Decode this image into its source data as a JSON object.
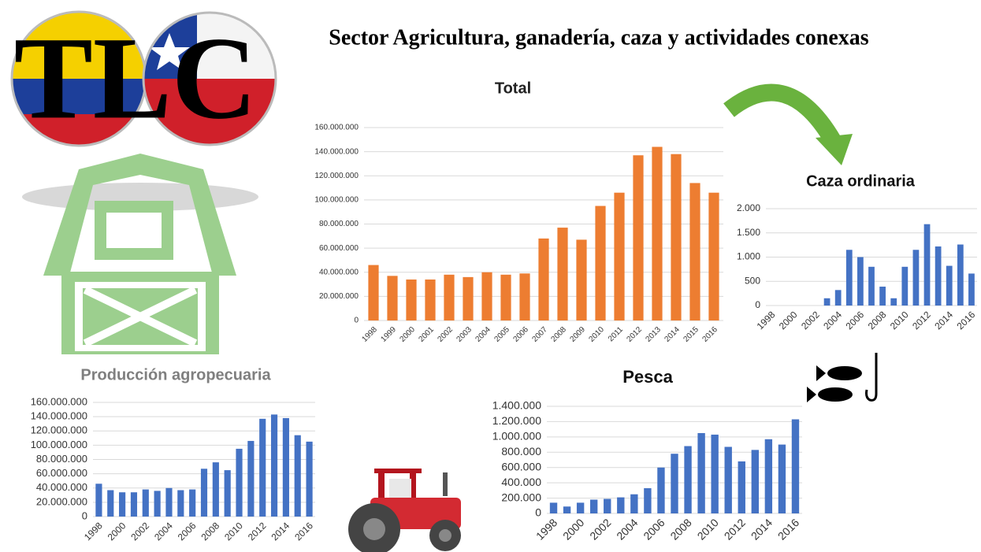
{
  "title": "Sector Agricultura, ganadería, caza y actividades conexas",
  "logo_text": "TLC",
  "chart_data": [
    {
      "type": "bar",
      "title": "Total",
      "categories": [
        "1998",
        "1999",
        "2000",
        "2001",
        "2002",
        "2003",
        "2004",
        "2005",
        "2006",
        "2007",
        "2008",
        "2009",
        "2010",
        "2011",
        "2012",
        "2013",
        "2014",
        "2015",
        "2016"
      ],
      "values": [
        46000000,
        37000000,
        34000000,
        34000000,
        38000000,
        36000000,
        40000000,
        38000000,
        39000000,
        68000000,
        77000000,
        67000000,
        95000000,
        106000000,
        137000000,
        144000000,
        138000000,
        114000000,
        106000000
      ],
      "color": "#ed7d31",
      "ylim": [
        0,
        160000000
      ],
      "yticks": [
        0,
        {
          "value": 20000000,
          "label": "20.000.000"
        },
        {
          "value": 40000000,
          "label": "40.000.000"
        },
        {
          "value": 60000000,
          "label": "60.000.000"
        },
        {
          "value": 80000000,
          "label": "80.000.000"
        },
        {
          "value": 100000000,
          "label": "100.000.000"
        },
        {
          "value": 120000000,
          "label": "120.000.000"
        },
        {
          "value": 140000000,
          "label": "140.000.000"
        },
        {
          "value": 160000000,
          "label": "160.000.000"
        }
      ],
      "grid": true
    },
    {
      "type": "bar",
      "title": "Caza ordinaria",
      "categories": [
        "1998",
        null,
        "2000",
        null,
        "2002",
        null,
        "2004",
        null,
        "2006",
        null,
        "2008",
        null,
        "2010",
        null,
        "2012",
        null,
        "2014",
        null,
        "2016"
      ],
      "values": [
        0,
        0,
        0,
        0,
        0,
        150,
        320,
        1150,
        1000,
        800,
        390,
        150,
        800,
        1150,
        1680,
        1220,
        820,
        1260,
        660
      ],
      "color": "#4472c4",
      "ylim": [
        0,
        2000
      ],
      "yticks": [
        0,
        500,
        {
          "value": 1000,
          "label": "1.000"
        },
        {
          "value": 1500,
          "label": "1.500"
        },
        {
          "value": 2000,
          "label": "2.000"
        }
      ],
      "grid": true
    },
    {
      "type": "bar",
      "title": "Producción agropecuaria",
      "categories": [
        "1998",
        null,
        "2000",
        null,
        "2002",
        null,
        "2004",
        null,
        "2006",
        null,
        "2008",
        null,
        "2010",
        null,
        "2012",
        null,
        "2014",
        null,
        "2016"
      ],
      "values": [
        46000000,
        37000000,
        34000000,
        34000000,
        38000000,
        36000000,
        40000000,
        37000000,
        38000000,
        67000000,
        76000000,
        65000000,
        95000000,
        106000000,
        137000000,
        143000000,
        138000000,
        114000000,
        105000000
      ],
      "color": "#4472c4",
      "ylim": [
        0,
        160000000
      ],
      "yticks": [
        0,
        {
          "value": 20000000,
          "label": "20.000.000"
        },
        {
          "value": 40000000,
          "label": "40.000.000"
        },
        {
          "value": 60000000,
          "label": "60.000.000"
        },
        {
          "value": 80000000,
          "label": "80.000.000"
        },
        {
          "value": 100000000,
          "label": "100.000.000"
        },
        {
          "value": 120000000,
          "label": "120.000.000"
        },
        {
          "value": 140000000,
          "label": "140.000.000"
        },
        {
          "value": 160000000,
          "label": "160.000.000"
        }
      ],
      "grid": true
    },
    {
      "type": "bar",
      "title": "Pesca",
      "categories": [
        "1998",
        null,
        "2000",
        null,
        "2002",
        null,
        "2004",
        null,
        "2006",
        null,
        "2008",
        null,
        "2010",
        null,
        "2012",
        null,
        "2014",
        null,
        "2016"
      ],
      "values": [
        140000,
        90000,
        140000,
        180000,
        190000,
        210000,
        250000,
        330000,
        600000,
        780000,
        880000,
        1050000,
        1030000,
        870000,
        680000,
        830000,
        970000,
        900000,
        1230000
      ],
      "color": "#4472c4",
      "ylim": [
        0,
        1400000
      ],
      "yticks": [
        0,
        {
          "value": 200000,
          "label": "200.000"
        },
        {
          "value": 400000,
          "label": "400.000"
        },
        {
          "value": 600000,
          "label": "600.000"
        },
        {
          "value": 800000,
          "label": "800.000"
        },
        {
          "value": 1000000,
          "label": "1.000.000"
        },
        {
          "value": 1200000,
          "label": "1.200.000"
        },
        {
          "value": 1400000,
          "label": "1.400.000"
        }
      ],
      "grid": true
    }
  ]
}
